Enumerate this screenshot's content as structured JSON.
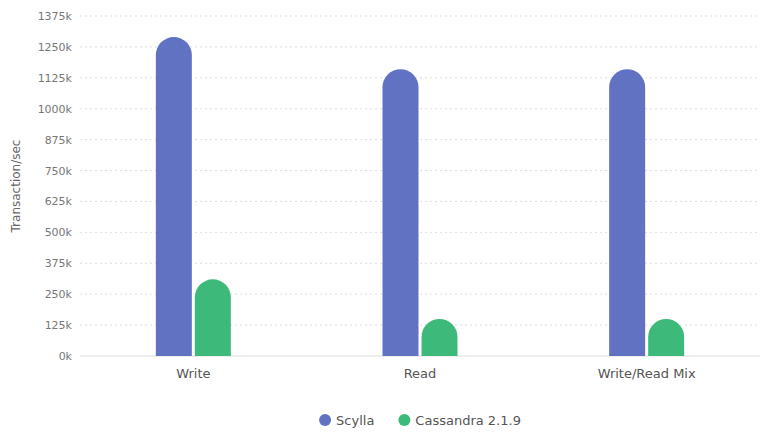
{
  "chart_data": {
    "type": "bar",
    "categories": [
      "Write",
      "Read",
      "Write/Read Mix"
    ],
    "series": [
      {
        "name": "Scylla",
        "color": "#6272c3",
        "values": [
          1290000,
          1160000,
          1160000
        ]
      },
      {
        "name": "Cassandra 2.1.9",
        "color": "#3dba7a",
        "values": [
          310000,
          150000,
          150000
        ]
      }
    ],
    "y_label": "Transaction/sec",
    "ylim": [
      0,
      1375000
    ],
    "yticks": [
      {
        "value": 0,
        "label": "0k"
      },
      {
        "value": 125000,
        "label": "125k"
      },
      {
        "value": 250000,
        "label": "250k"
      },
      {
        "value": 375000,
        "label": "375k"
      },
      {
        "value": 500000,
        "label": "500k"
      },
      {
        "value": 625000,
        "label": "625k"
      },
      {
        "value": 750000,
        "label": "750k"
      },
      {
        "value": 875000,
        "label": "875k"
      },
      {
        "value": 1000000,
        "label": "1000k"
      },
      {
        "value": 1125000,
        "label": "1125k"
      },
      {
        "value": 1250000,
        "label": "1250k"
      },
      {
        "value": 1375000,
        "label": "1375k"
      }
    ],
    "grid": true,
    "legend": "bottom"
  }
}
